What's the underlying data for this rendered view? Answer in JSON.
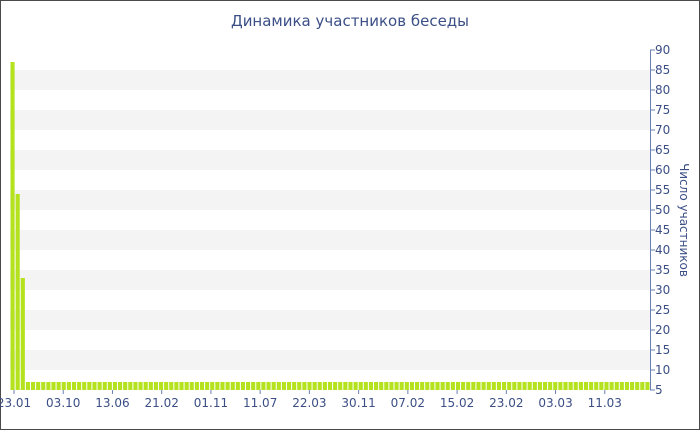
{
  "chart_data": {
    "type": "bar",
    "title": "Динамика участников беседы",
    "xlabel": "",
    "ylabel": "Число участников",
    "ylim": [
      5,
      90
    ],
    "y_ticks": [
      5,
      10,
      15,
      20,
      25,
      30,
      35,
      40,
      45,
      50,
      55,
      60,
      65,
      70,
      75,
      80,
      85,
      90
    ],
    "x_tick_labels": [
      "23.01",
      "03.10",
      "13.06",
      "21.02",
      "01.11",
      "11.07",
      "22.03",
      "30.11",
      "07.02",
      "15.02",
      "23.02",
      "03.03",
      "11.03"
    ],
    "grid": "horizontal bands",
    "y_axis_position": "right",
    "bar_color": "#b5e21e",
    "values": [
      87,
      54,
      33,
      7,
      7,
      7,
      7,
      7,
      7,
      7,
      7,
      7,
      7,
      7,
      7,
      7,
      7,
      7,
      7,
      7,
      7,
      7,
      7,
      7,
      7,
      7,
      7,
      7,
      7,
      7,
      7,
      7,
      7,
      7,
      7,
      7,
      7,
      7,
      7,
      7,
      7,
      7,
      7,
      7,
      7,
      7,
      7,
      7,
      7,
      7,
      7,
      7,
      7,
      7,
      7,
      7,
      7,
      7,
      7,
      7,
      7,
      7,
      7,
      7,
      7,
      7,
      7,
      7,
      7,
      7,
      7,
      7,
      7,
      7,
      7,
      7,
      7,
      7,
      7,
      7,
      7,
      7,
      7,
      7,
      7,
      7,
      7,
      7,
      7,
      7,
      7,
      7,
      7,
      7,
      7,
      7,
      7,
      7,
      7,
      7,
      7,
      7,
      7,
      7,
      7,
      7,
      7,
      7,
      7,
      7,
      7,
      7,
      7,
      7,
      7,
      7,
      7,
      7,
      7,
      7,
      7,
      7,
      7,
      7,
      7
    ]
  }
}
